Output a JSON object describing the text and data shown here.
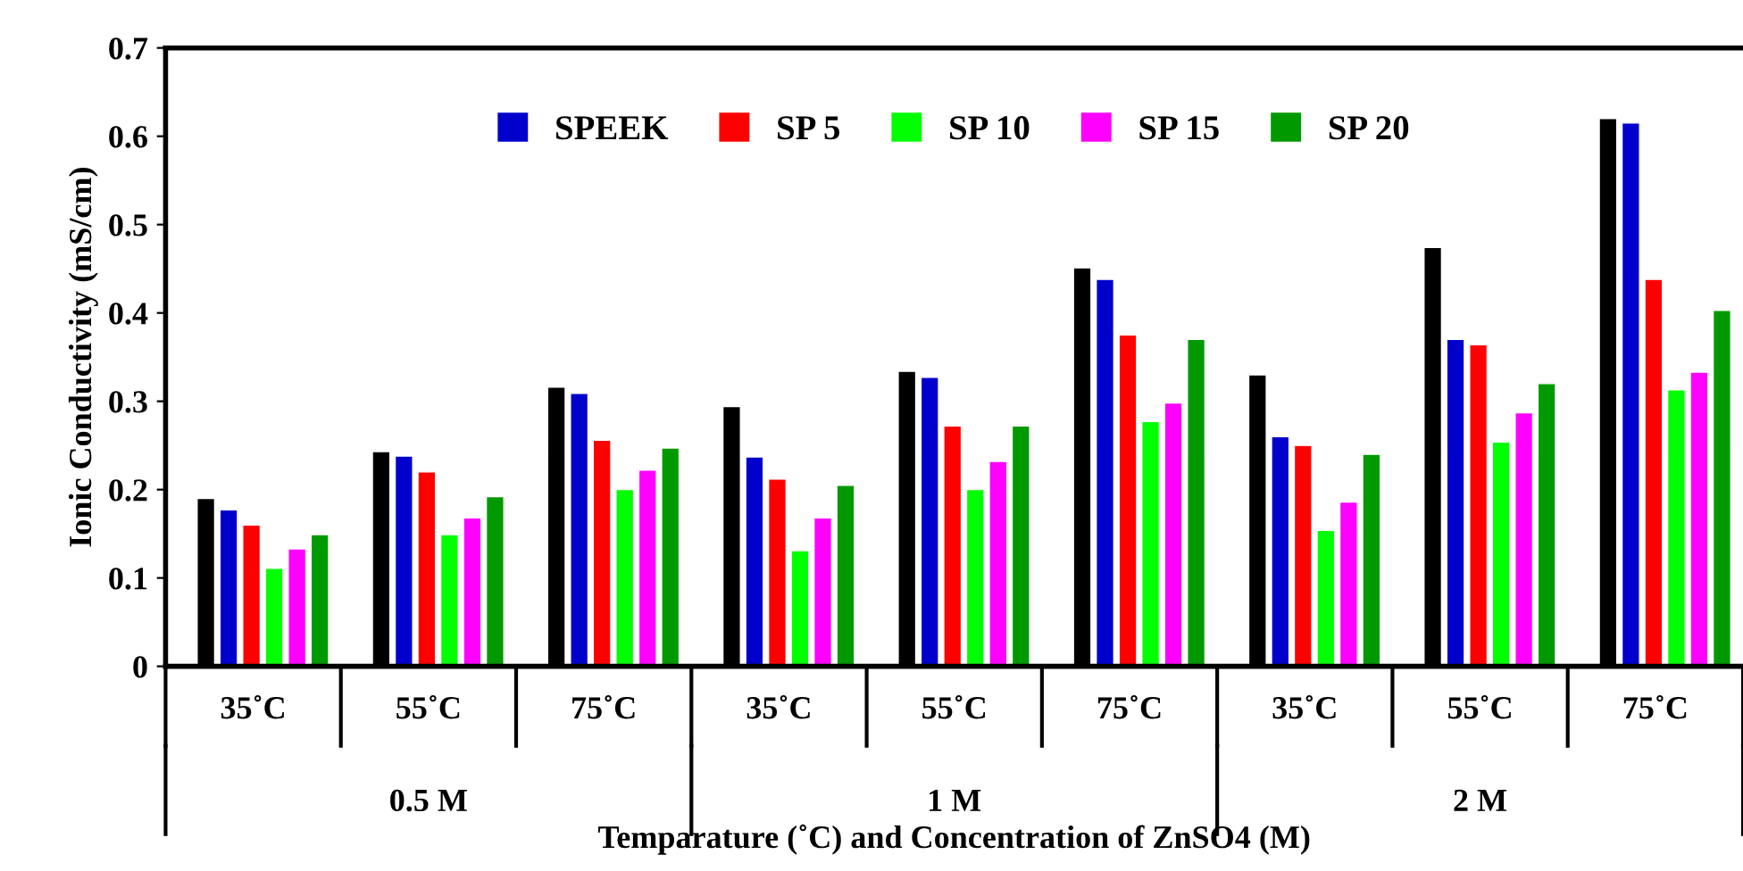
{
  "chart_data": {
    "type": "bar",
    "xlabel": "Temparature (˚C) and Concentration of ZnSO4 (M)",
    "ylabel": "Ionic Conductivity (mS/cm)",
    "categories": [
      "35˚C",
      "55˚C",
      "75˚C",
      "35˚C",
      "55˚C",
      "75˚C",
      "35˚C",
      "55˚C",
      "75˚C"
    ],
    "series": [
      {
        "color": "#000000",
        "values": [
          0.19,
          0.243,
          0.316,
          0.294,
          0.334,
          0.451,
          0.33,
          0.474,
          0.62
        ]
      },
      {
        "name": "SPEEK",
        "color": "#0000cc",
        "values": [
          0.177,
          0.238,
          0.309,
          0.237,
          0.327,
          0.438,
          0.26,
          0.37,
          0.615
        ]
      },
      {
        "name": "SP 5",
        "color": "#ff0000",
        "values": [
          0.16,
          0.22,
          0.256,
          0.212,
          0.272,
          0.375,
          0.25,
          0.364,
          0.438
        ]
      },
      {
        "name": "SP 10",
        "color": "#00ff00",
        "values": [
          0.111,
          0.149,
          0.2,
          0.131,
          0.2,
          0.277,
          0.154,
          0.254,
          0.313
        ]
      },
      {
        "name": "SP 15",
        "color": "#ff00ff",
        "values": [
          0.133,
          0.168,
          0.222,
          0.168,
          0.232,
          0.298,
          0.186,
          0.287,
          0.333
        ]
      },
      {
        "name": "SP 20",
        "color": "#009900",
        "values": [
          0.149,
          0.192,
          0.247,
          0.205,
          0.272,
          0.37,
          0.24,
          0.32,
          0.403
        ]
      }
    ],
    "annotations": [
      "0.5 M",
      "1 M",
      "2 M"
    ],
    "ylim": [
      0,
      0.7
    ],
    "yticks": [
      0,
      0.1,
      0.2,
      0.3,
      0.4,
      0.5,
      0.6,
      0.7
    ],
    "grid": false,
    "legend": "top"
  }
}
